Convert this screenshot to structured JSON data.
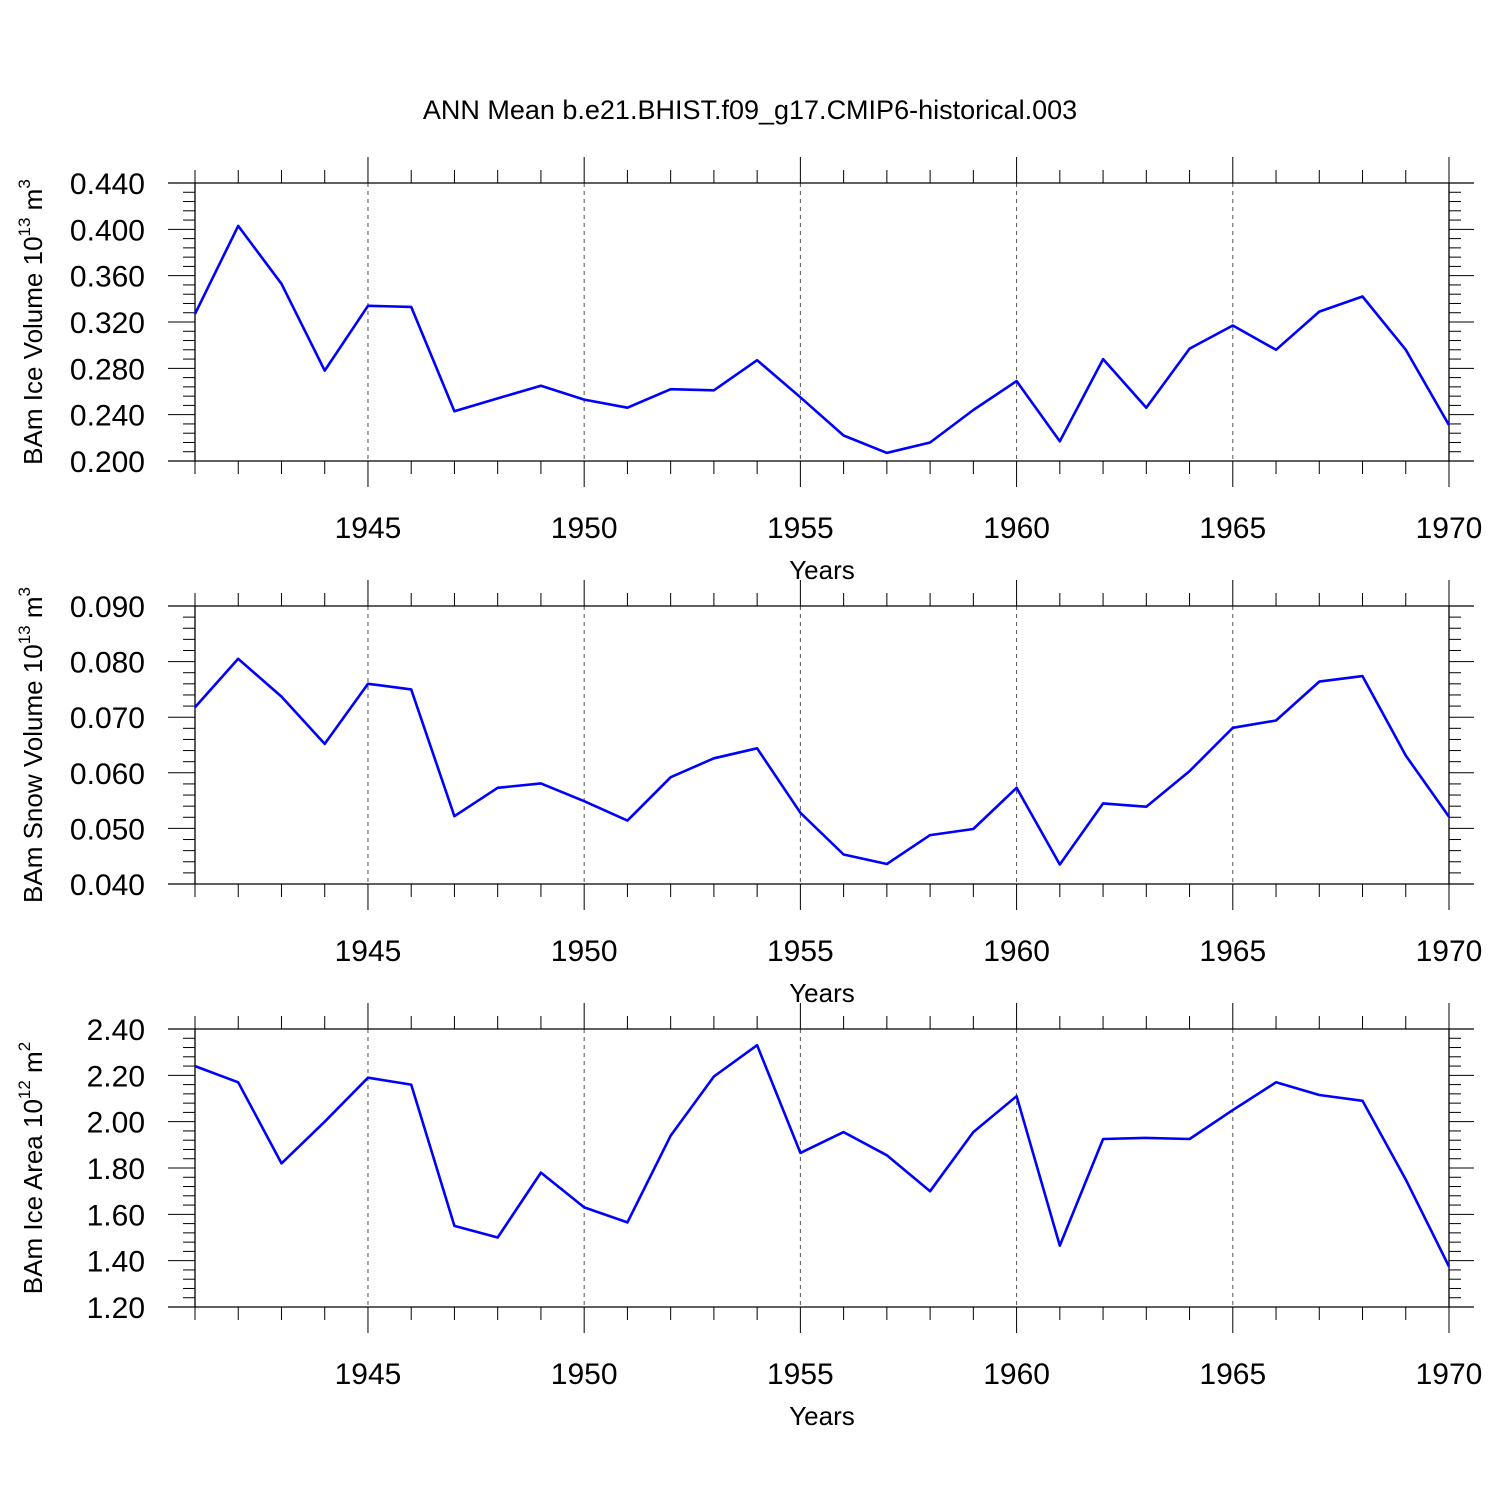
{
  "title": "ANN Mean b.e21.BHIST.f09_g17.CMIP6-historical.003",
  "colors": {
    "line": "#0000ff",
    "axis": "#000000",
    "grid": "#555555",
    "background": "#ffffff"
  },
  "chart_data": [
    {
      "type": "line",
      "ylabel": {
        "text": "BAm Ice Volume 10",
        "exp": "13",
        "unit": " m",
        "unit_exp": "3"
      },
      "xlabel": "Years",
      "xlim": [
        1941,
        1970
      ],
      "ylim": [
        0.2,
        0.44
      ],
      "yticks": [
        "0.200",
        "0.240",
        "0.280",
        "0.320",
        "0.360",
        "0.400",
        "0.440"
      ],
      "xticks": [
        "1945",
        "1950",
        "1955",
        "1960",
        "1965",
        "1970"
      ],
      "grid": "vertical dashed at labeled x ticks",
      "series": [
        {
          "name": "BAm Ice Volume",
          "x": [
            1941,
            1942,
            1943,
            1944,
            1945,
            1946,
            1947,
            1948,
            1949,
            1950,
            1951,
            1952,
            1953,
            1954,
            1955,
            1956,
            1957,
            1958,
            1959,
            1960,
            1961,
            1962,
            1963,
            1964,
            1965,
            1966,
            1967,
            1968,
            1969,
            1970
          ],
          "values": [
            0.327,
            0.403,
            0.353,
            0.278,
            0.334,
            0.333,
            0.243,
            0.254,
            0.265,
            0.253,
            0.246,
            0.262,
            0.261,
            0.287,
            0.255,
            0.222,
            0.207,
            0.216,
            0.244,
            0.269,
            0.217,
            0.288,
            0.246,
            0.297,
            0.317,
            0.296,
            0.329,
            0.342,
            0.296,
            0.231
          ]
        }
      ]
    },
    {
      "type": "line",
      "ylabel": {
        "text": "BAm Snow Volume 10",
        "exp": "13",
        "unit": " m",
        "unit_exp": "3"
      },
      "xlabel": "Years",
      "xlim": [
        1941,
        1970
      ],
      "ylim": [
        0.04,
        0.09
      ],
      "yticks": [
        "0.040",
        "0.050",
        "0.060",
        "0.070",
        "0.080",
        "0.090"
      ],
      "xticks": [
        "1945",
        "1950",
        "1955",
        "1960",
        "1965",
        "1970"
      ],
      "grid": "vertical dashed at labeled x ticks",
      "series": [
        {
          "name": "BAm Snow Volume",
          "x": [
            1941,
            1942,
            1943,
            1944,
            1945,
            1946,
            1947,
            1948,
            1949,
            1950,
            1951,
            1952,
            1953,
            1954,
            1955,
            1956,
            1957,
            1958,
            1959,
            1960,
            1961,
            1962,
            1963,
            1964,
            1965,
            1966,
            1967,
            1968,
            1969,
            1970
          ],
          "values": [
            0.0718,
            0.0805,
            0.0737,
            0.0652,
            0.076,
            0.075,
            0.0522,
            0.0573,
            0.0581,
            0.0549,
            0.0514,
            0.0592,
            0.0626,
            0.0644,
            0.0528,
            0.0453,
            0.0436,
            0.0488,
            0.0499,
            0.0573,
            0.0435,
            0.0545,
            0.0539,
            0.0603,
            0.0681,
            0.0694,
            0.0764,
            0.0774,
            0.0631,
            0.0521
          ]
        }
      ]
    },
    {
      "type": "line",
      "ylabel": {
        "text": "BAm Ice Area 10",
        "exp": "12",
        "unit": " m",
        "unit_exp": "2"
      },
      "xlabel": "Years",
      "xlim": [
        1941,
        1970
      ],
      "ylim": [
        1.2,
        2.4
      ],
      "yticks": [
        "1.20",
        "1.40",
        "1.60",
        "1.80",
        "2.00",
        "2.20",
        "2.40"
      ],
      "xticks": [
        "1945",
        "1950",
        "1955",
        "1960",
        "1965",
        "1970"
      ],
      "grid": "vertical dashed at labeled x ticks",
      "series": [
        {
          "name": "BAm Ice Area",
          "x": [
            1941,
            1942,
            1943,
            1944,
            1945,
            1946,
            1947,
            1948,
            1949,
            1950,
            1951,
            1952,
            1953,
            1954,
            1955,
            1956,
            1957,
            1958,
            1959,
            1960,
            1961,
            1962,
            1963,
            1964,
            1965,
            1966,
            1967,
            1968,
            1969,
            1970
          ],
          "values": [
            2.24,
            2.17,
            1.82,
            2.0,
            2.19,
            2.16,
            1.55,
            1.5,
            1.78,
            1.63,
            1.565,
            1.94,
            2.195,
            2.33,
            1.865,
            1.955,
            1.855,
            1.7,
            1.955,
            2.11,
            1.465,
            1.925,
            1.93,
            1.925,
            2.05,
            2.17,
            2.115,
            2.09,
            1.75,
            1.375
          ]
        }
      ]
    }
  ]
}
